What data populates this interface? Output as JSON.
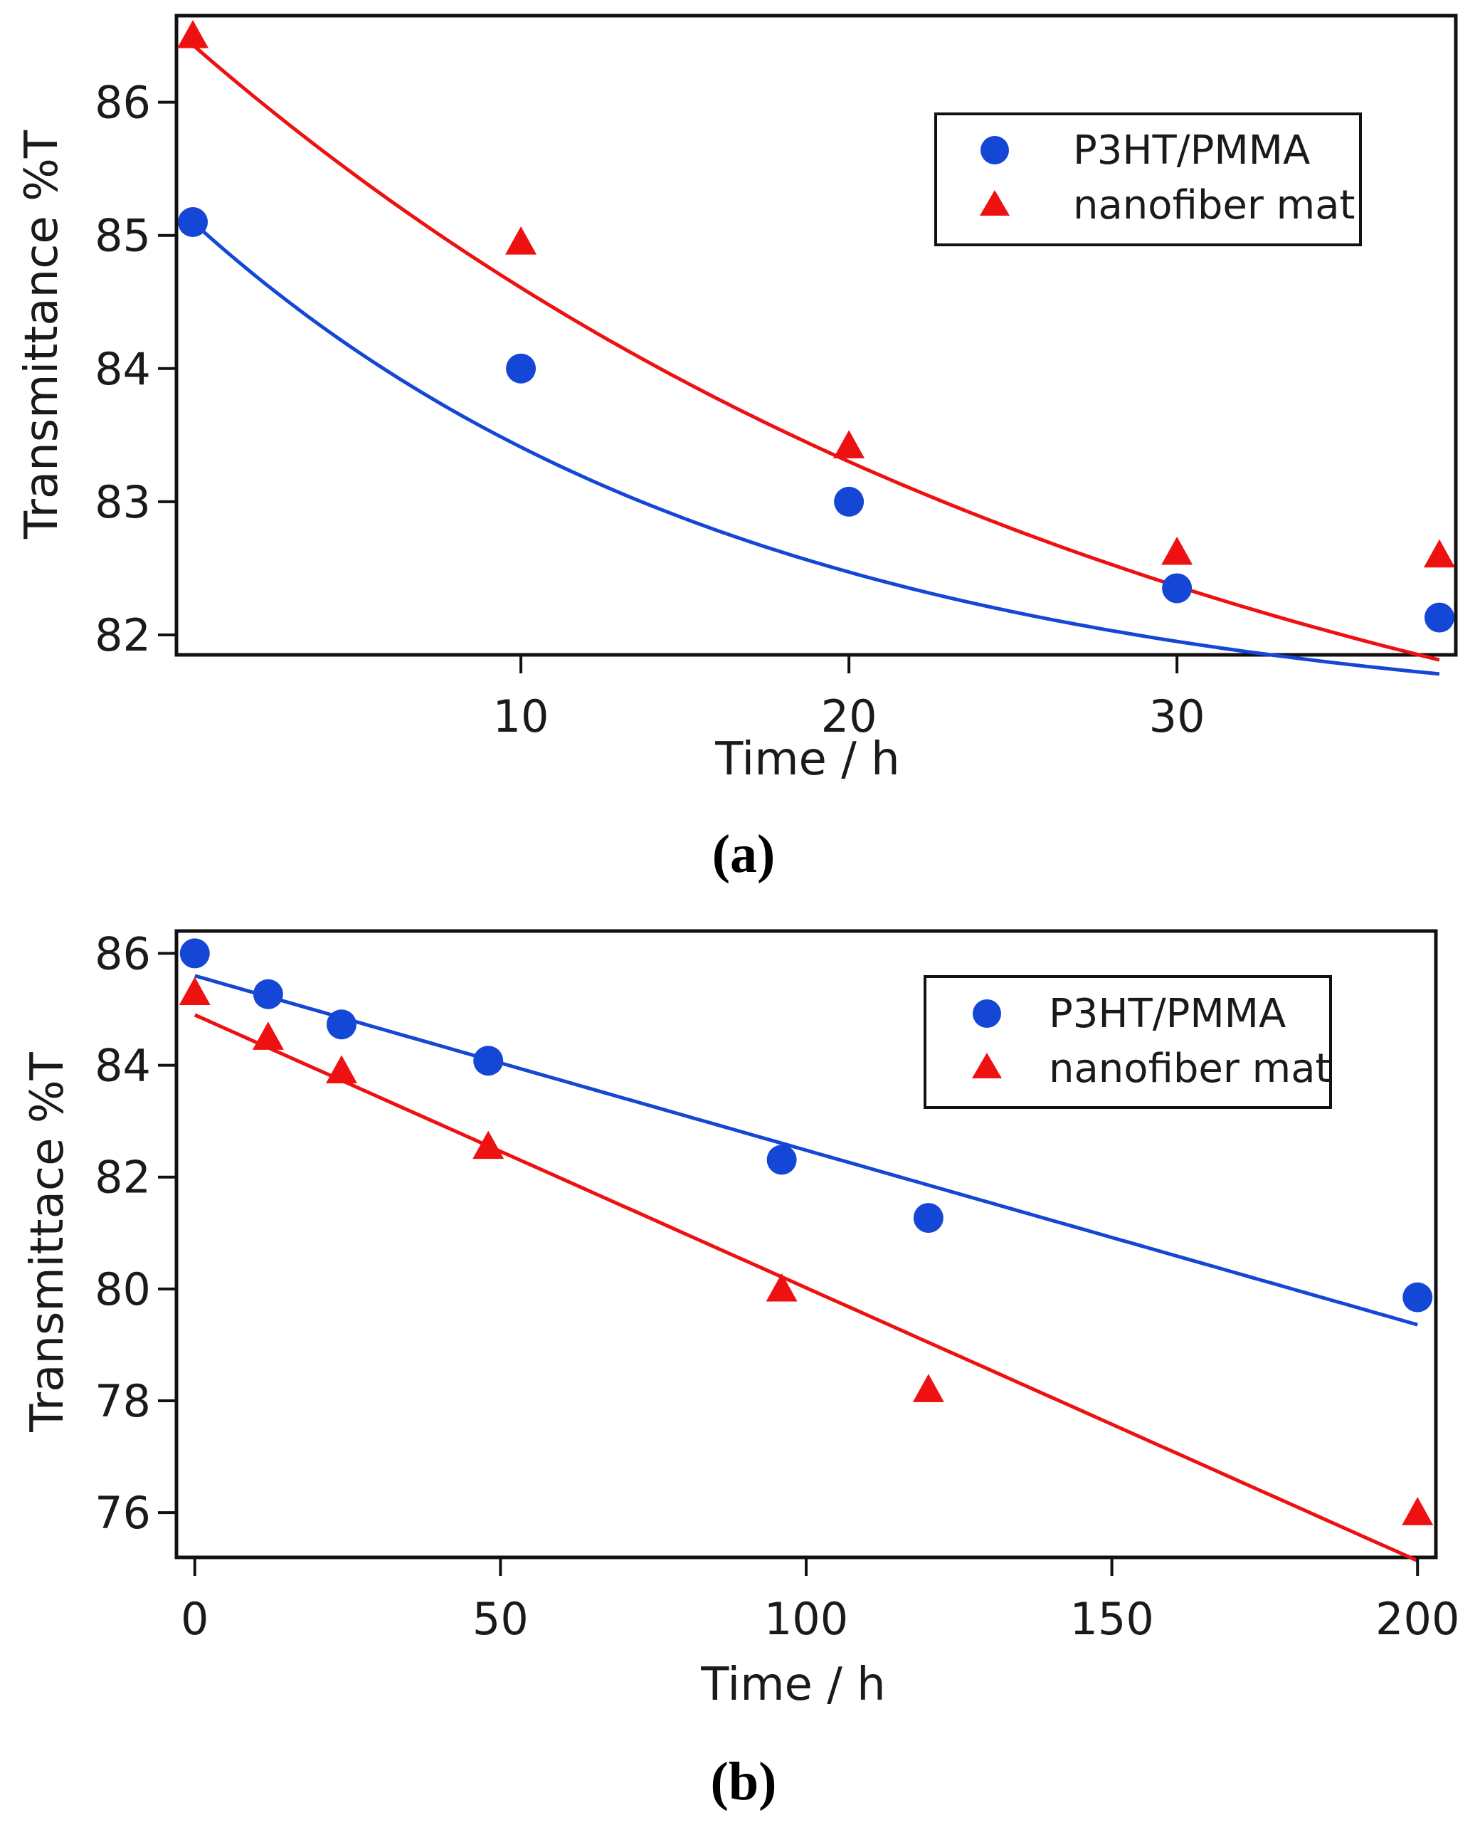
{
  "chart_data": [
    {
      "type": "scatter",
      "panel_label": "(a)",
      "xlabel": "Time / h",
      "ylabel": "Transmittance %T",
      "xlim": [
        -0.5,
        38.5
      ],
      "ylim": [
        81.85,
        86.65
      ],
      "xticks": [
        10,
        20,
        30
      ],
      "yticks": [
        82,
        83,
        84,
        85,
        86
      ],
      "legend_position": "top-right",
      "series": [
        {
          "name": "P3HT/PMMA",
          "marker": "circle",
          "color": "#1447d6",
          "x": [
            0,
            10,
            20,
            30,
            38
          ],
          "y": [
            85.1,
            84.0,
            83.0,
            82.35,
            82.13
          ],
          "fit": {
            "kind": "exponential",
            "a": 81.3,
            "b": 3.8,
            "tau": 17
          }
        },
        {
          "name": "nanofiber mat",
          "marker": "triangle",
          "color": "#ee1111",
          "x": [
            0,
            10,
            20,
            30,
            38
          ],
          "y": [
            86.5,
            84.95,
            83.42,
            82.62,
            82.6
          ],
          "fit": {
            "kind": "exponential",
            "a": 80.0,
            "b": 6.43,
            "tau": 30
          }
        }
      ]
    },
    {
      "type": "scatter",
      "panel_label": "(b)",
      "xlabel": "Time / h",
      "ylabel": "Transmittace %T",
      "xlim": [
        -3,
        203
      ],
      "ylim": [
        75.2,
        86.4
      ],
      "xticks": [
        0,
        50,
        100,
        150,
        200
      ],
      "yticks": [
        76,
        78,
        80,
        82,
        84,
        86
      ],
      "legend_position": "top-right",
      "series": [
        {
          "name": "P3HT/PMMA",
          "marker": "circle",
          "color": "#1447d6",
          "x": [
            0,
            12,
            24,
            48,
            96,
            120,
            200
          ],
          "y": [
            86.0,
            85.27,
            84.73,
            84.08,
            82.31,
            81.27,
            79.85
          ],
          "fit": {
            "kind": "linear",
            "y0": 85.6,
            "slope": -0.0312
          }
        },
        {
          "name": "nanofiber mat",
          "marker": "triangle",
          "color": "#ee1111",
          "x": [
            0,
            12,
            24,
            48,
            96,
            120,
            200
          ],
          "y": [
            85.3,
            84.5,
            83.9,
            82.55,
            80.0,
            78.2,
            76.0
          ],
          "fit": {
            "kind": "linear",
            "y0": 84.9,
            "slope": -0.0488
          }
        }
      ]
    }
  ]
}
